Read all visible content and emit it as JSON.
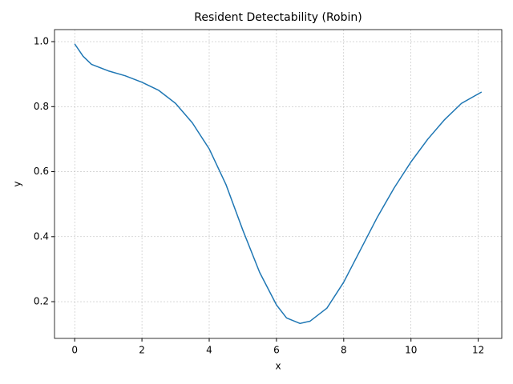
{
  "chart_data": {
    "type": "line",
    "title": "Resident Detectability (Robin)",
    "xlabel": "x",
    "ylabel": "y",
    "x": [
      0,
      0.25,
      0.5,
      1,
      1.5,
      2,
      2.5,
      3,
      3.5,
      4,
      4.5,
      5,
      5.5,
      6,
      6.3,
      6.7,
      7,
      7.5,
      8,
      8.5,
      9,
      9.5,
      10,
      10.5,
      11,
      11.5,
      12.1
    ],
    "series": [
      {
        "name": "y",
        "color": "#1f77b4",
        "values": [
          0.993,
          0.955,
          0.93,
          0.91,
          0.895,
          0.875,
          0.85,
          0.81,
          0.75,
          0.67,
          0.56,
          0.42,
          0.29,
          0.19,
          0.15,
          0.133,
          0.14,
          0.18,
          0.26,
          0.36,
          0.46,
          0.55,
          0.63,
          0.7,
          0.76,
          0.81,
          0.845
        ]
      }
    ],
    "xlim": [
      -0.6,
      12.7
    ],
    "ylim": [
      0.087,
      1.037
    ],
    "xticks": [
      0,
      2,
      4,
      6,
      8,
      10,
      12
    ],
    "yticks": [
      0.2,
      0.4,
      0.6,
      0.8,
      {
        "value": 1,
        "label": "1.0"
      }
    ],
    "grid": true
  }
}
